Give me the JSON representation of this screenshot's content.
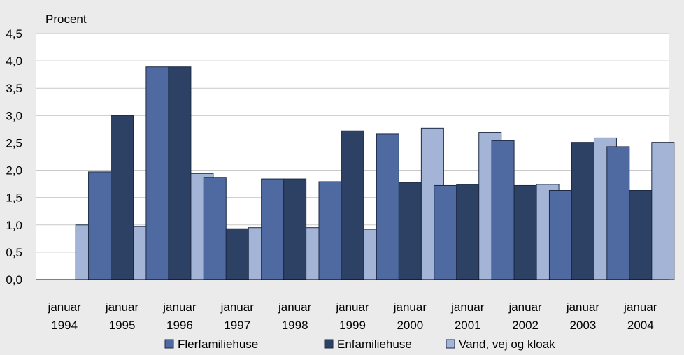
{
  "chart_data": {
    "type": "bar",
    "ylabel": "Procent",
    "ylim": [
      0,
      4.5
    ],
    "yticks": [
      "0,0",
      "0,5",
      "1,0",
      "1,5",
      "2,0",
      "2,5",
      "3,0",
      "3,5",
      "4,0",
      "4,5"
    ],
    "categories": [
      [
        "januar",
        "1994"
      ],
      [
        "januar",
        "1995"
      ],
      [
        "januar",
        "1996"
      ],
      [
        "januar",
        "1997"
      ],
      [
        "januar",
        "1998"
      ],
      [
        "januar",
        "1999"
      ],
      [
        "januar",
        "2000"
      ],
      [
        "januar",
        "2001"
      ],
      [
        "januar",
        "2002"
      ],
      [
        "januar",
        "2003"
      ],
      [
        "januar",
        "2004"
      ]
    ],
    "series": [
      {
        "name": "Flerfamiliehuse",
        "color": "#4f6aa0",
        "values": [
          null,
          1.97,
          3.89,
          1.87,
          1.84,
          1.79,
          2.66,
          1.72,
          2.54,
          1.63,
          2.43
        ]
      },
      {
        "name": "Enfamiliehuse",
        "color": "#2d4165",
        "values": [
          null,
          3.0,
          3.89,
          0.93,
          1.84,
          2.72,
          1.77,
          1.74,
          1.72,
          2.51,
          1.63
        ]
      },
      {
        "name": "Vand, vej og kloak",
        "color": "#a3b4d6",
        "values": [
          1.0,
          0.97,
          1.94,
          0.95,
          0.95,
          0.92,
          2.77,
          2.69,
          1.74,
          2.59,
          2.51
        ]
      }
    ],
    "grid": true,
    "legend": "bottom"
  }
}
